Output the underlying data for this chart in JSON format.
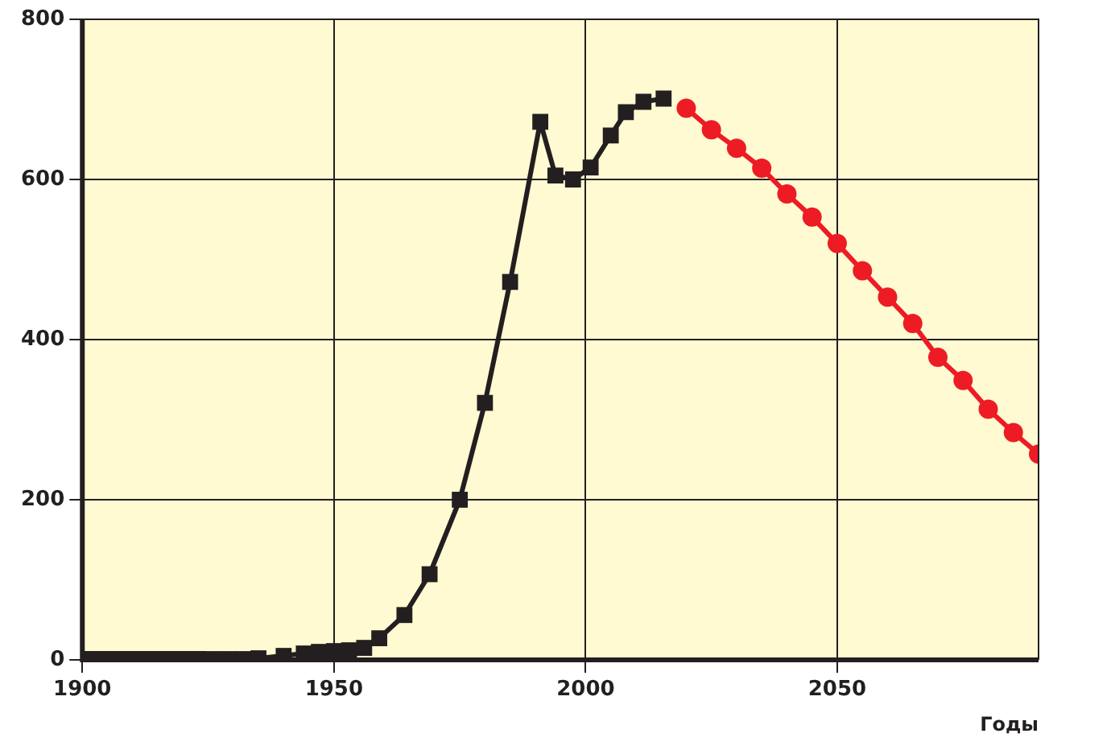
{
  "chart_data": {
    "type": "line",
    "xlabel": "Годы",
    "xlim": [
      1900,
      2090
    ],
    "xticks": [
      1900,
      1950,
      2000,
      2050
    ],
    "ylim": [
      0,
      800
    ],
    "yticks": [
      0,
      200,
      400,
      600,
      800
    ],
    "grid": true,
    "legend": false,
    "series": [
      {
        "color": "#231f20",
        "marker": "square",
        "x": [
          1902,
          1905,
          1908,
          1911,
          1914,
          1917,
          1920,
          1923,
          1926,
          1929,
          1932,
          1935,
          1940,
          1944,
          1947,
          1950,
          1953,
          1956,
          1959,
          1964,
          1969,
          1975,
          1980,
          1985,
          1991,
          1994,
          1997.5,
          2001,
          2005,
          2008,
          2011.5,
          2015.5
        ],
        "values": [
          1,
          1,
          1,
          1,
          1,
          1,
          1,
          1,
          1,
          1,
          1,
          2,
          5,
          8,
          10,
          11,
          12,
          15,
          27,
          56,
          107,
          200,
          321,
          472,
          672,
          605,
          600,
          615,
          655,
          684,
          697,
          701
        ]
      },
      {
        "color": "#ed1c24",
        "marker": "circle",
        "x": [
          2020,
          2025,
          2030,
          2035,
          2040,
          2045,
          2050,
          2055,
          2060,
          2065,
          2070,
          2075,
          2080,
          2085,
          2090
        ],
        "values": [
          689,
          662,
          639,
          614,
          582,
          553,
          520,
          486,
          453,
          420,
          378,
          349,
          313,
          284,
          257
        ]
      }
    ]
  }
}
